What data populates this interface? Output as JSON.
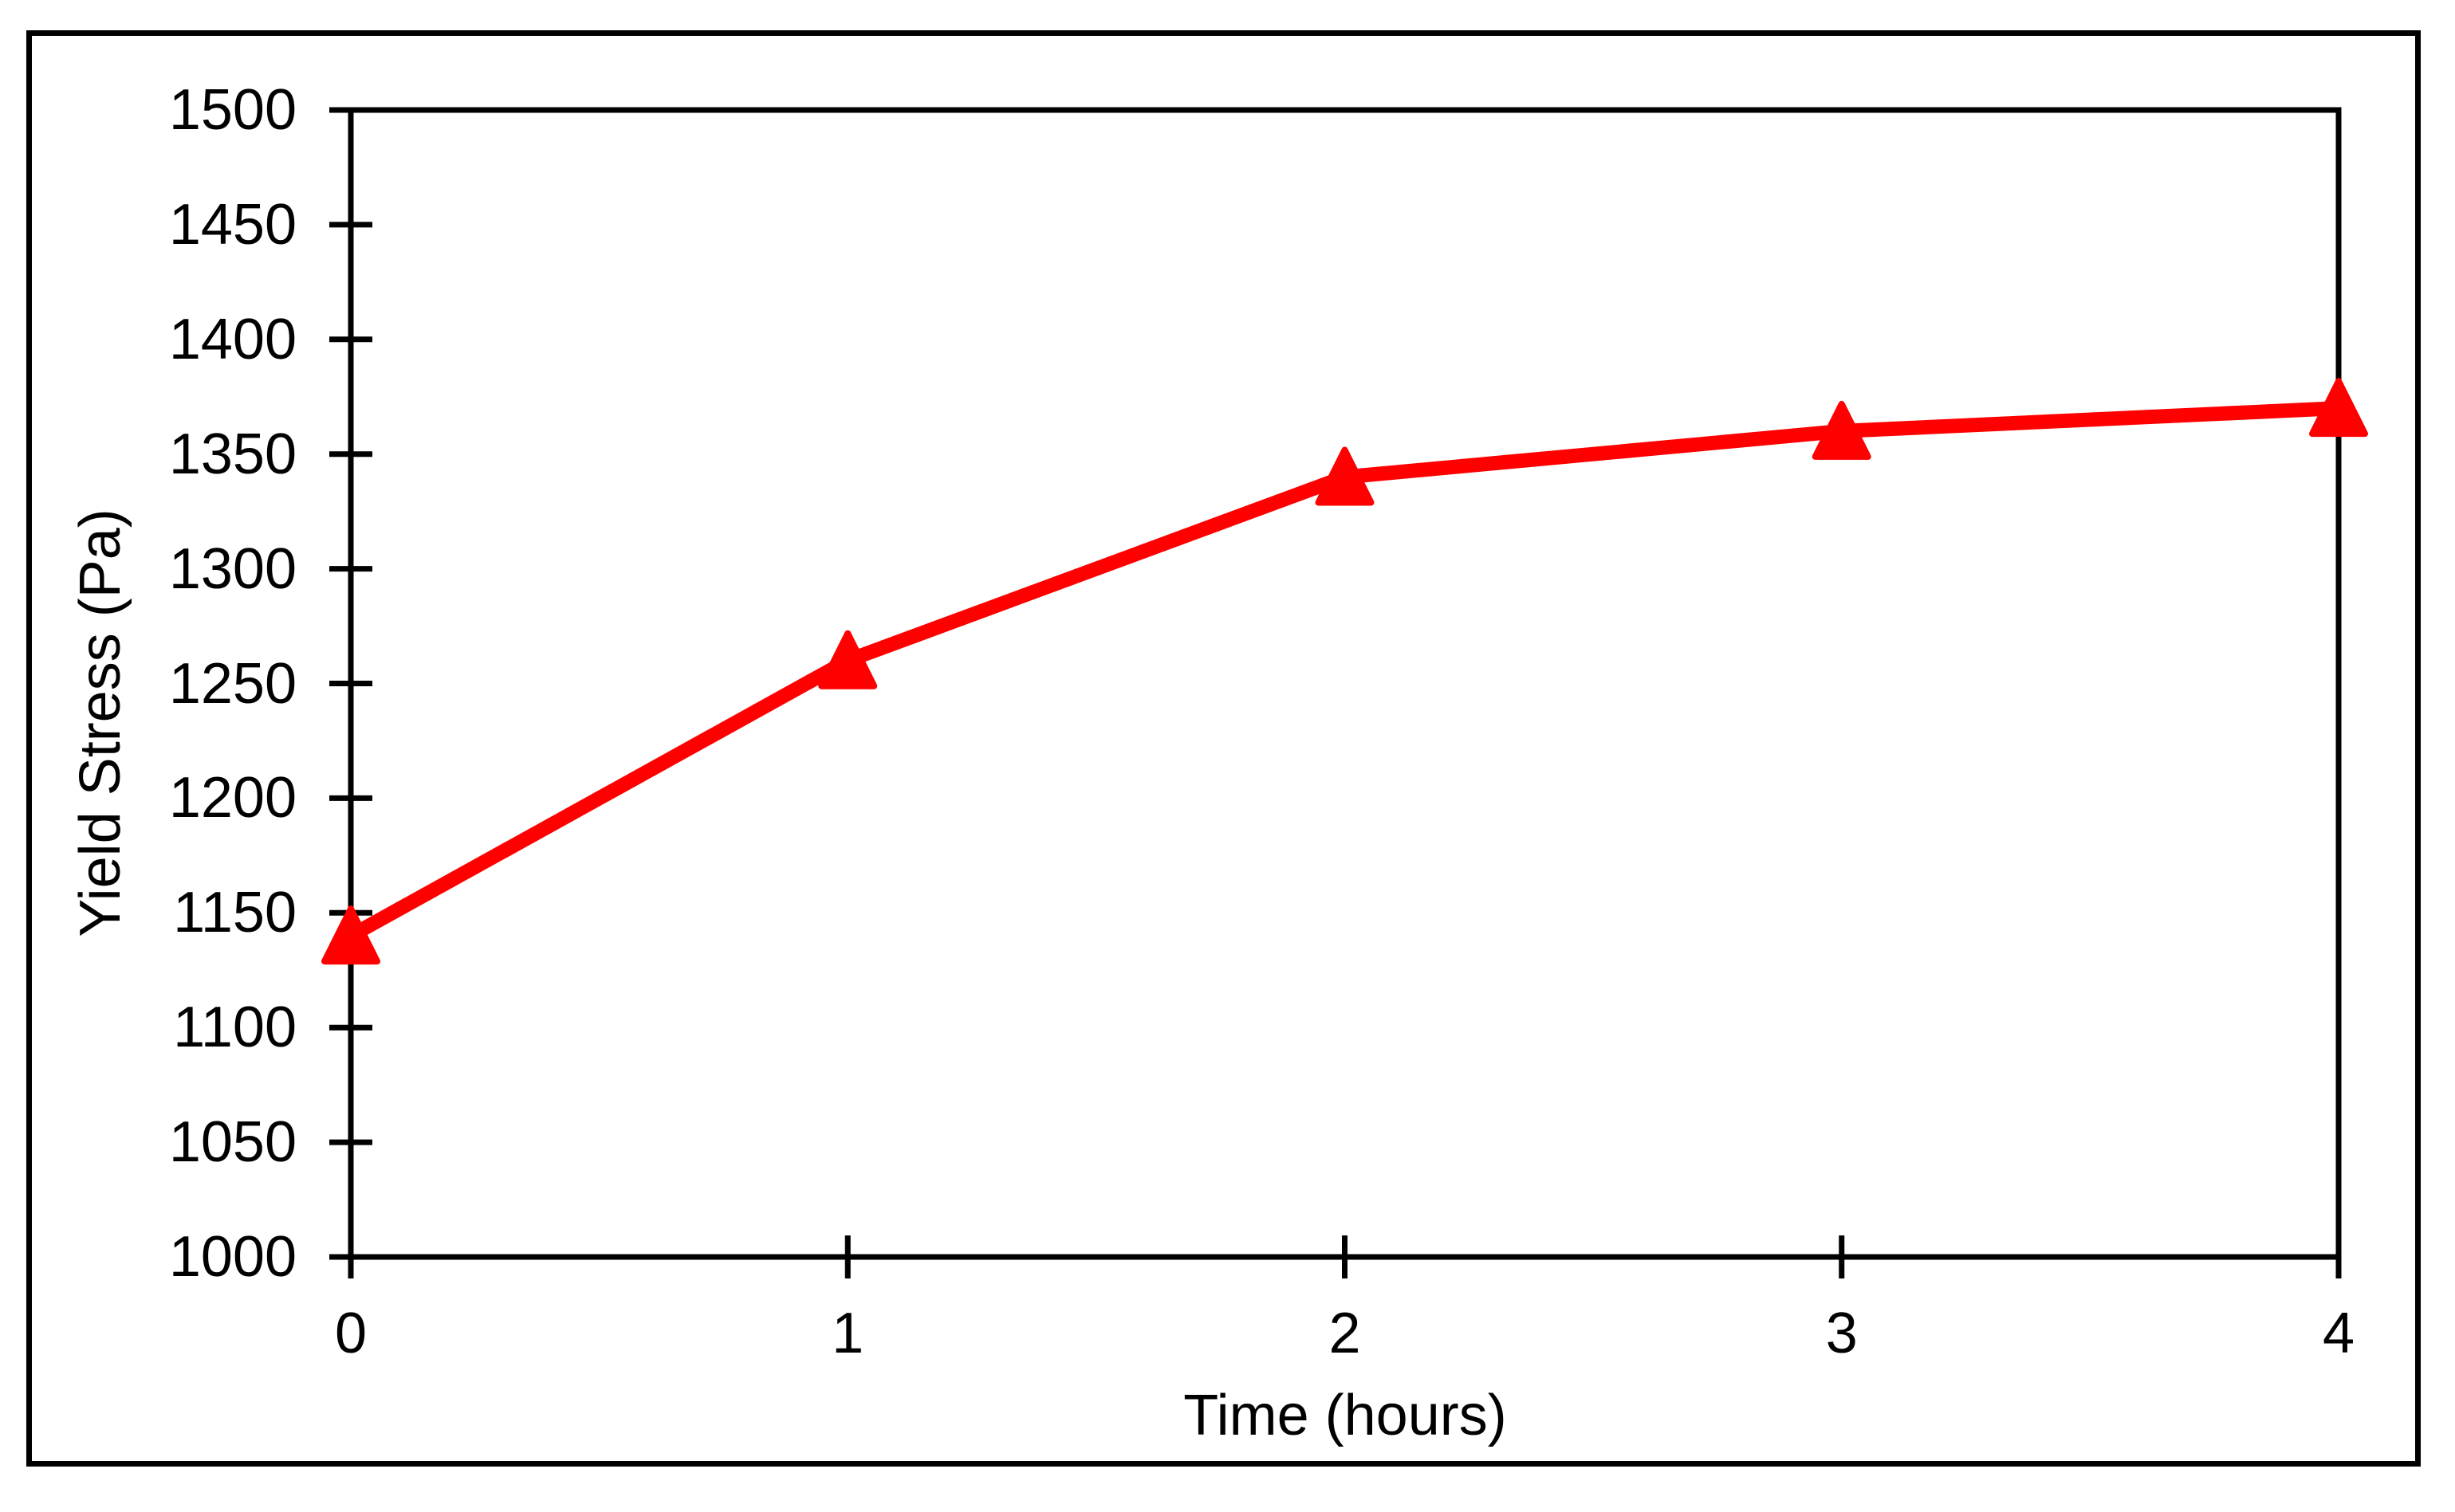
{
  "chart_data": {
    "type": "line",
    "title": "",
    "xlabel": "Time (hours)",
    "ylabel": "Yield Stress (Pa)",
    "xlim": [
      0,
      4
    ],
    "ylim": [
      1000,
      1500
    ],
    "x_ticks": [
      0,
      1,
      2,
      3,
      4
    ],
    "y_ticks": [
      1000,
      1050,
      1100,
      1150,
      1200,
      1250,
      1300,
      1350,
      1400,
      1450,
      1500
    ],
    "grid": false,
    "legend": false,
    "tick_style": "cross",
    "axis_color": "#000000",
    "background_color": "#ffffff",
    "series": [
      {
        "name": "Yield Stress",
        "color": "#FF0000",
        "marker": "triangle-up",
        "line_style": "solid",
        "x": [
          0,
          1,
          2,
          3,
          4
        ],
        "values": [
          1140,
          1260,
          1340,
          1360,
          1370
        ]
      }
    ]
  }
}
